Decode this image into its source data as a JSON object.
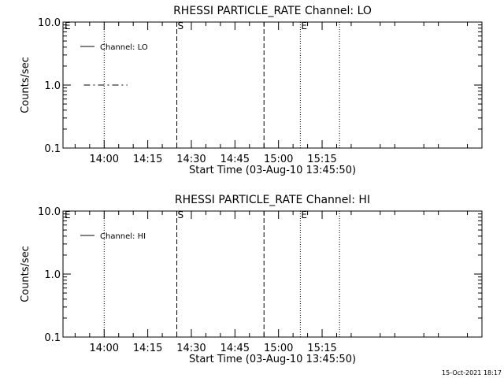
{
  "footer": {
    "timestamp": "15-Oct-2021 18:17"
  },
  "chart_data": [
    {
      "type": "line",
      "title": "RHESSI PARTICLE_RATE Channel: LO",
      "xlabel": "Start Time (03-Aug-10 13:45:50)",
      "ylabel": "Counts/sec",
      "y_scale": "log",
      "ylim": [
        0.1,
        10.0
      ],
      "y_ticks": [
        {
          "value": 0.1,
          "label": "0.1"
        },
        {
          "value": 1.0,
          "label": "1.0"
        },
        {
          "value": 10.0,
          "label": "10.0"
        }
      ],
      "x_ticks": [
        {
          "value": "14:00",
          "label": "14:00"
        },
        {
          "value": "14:15",
          "label": "14:15"
        },
        {
          "value": "14:30",
          "label": "14:30"
        },
        {
          "value": "14:45",
          "label": "14:45"
        },
        {
          "value": "15:00",
          "label": "15:00"
        },
        {
          "value": "15:15",
          "label": "15:15"
        }
      ],
      "xlim": [
        "13:45:50",
        "16:10:00"
      ],
      "grid": false,
      "legend_position": "top-left",
      "series": [
        {
          "name": "Channel: LO",
          "x": [
            "13:53:00",
            "14:08:00"
          ],
          "values": [
            1.0,
            1.0
          ],
          "line_style": "dash-dot"
        }
      ],
      "markers": [
        {
          "time": "14:00:00",
          "label": "",
          "style": "dotted"
        },
        {
          "time": "14:25:00",
          "label": "S",
          "style": "dashed"
        },
        {
          "time": "14:55:00",
          "label": "",
          "style": "dashed"
        },
        {
          "time": "15:07:30",
          "label": "E",
          "style": "dotted"
        },
        {
          "time": "15:21:00",
          "label": "",
          "style": "dotted"
        }
      ],
      "corner_labels": [
        {
          "label": "E",
          "position": "top-left"
        }
      ]
    },
    {
      "type": "line",
      "title": "RHESSI PARTICLE_RATE Channel: HI",
      "xlabel": "Start Time (03-Aug-10 13:45:50)",
      "ylabel": "Counts/sec",
      "y_scale": "log",
      "ylim": [
        0.1,
        10.0
      ],
      "y_ticks": [
        {
          "value": 0.1,
          "label": "0.1"
        },
        {
          "value": 1.0,
          "label": "1.0"
        },
        {
          "value": 10.0,
          "label": "10.0"
        }
      ],
      "x_ticks": [
        {
          "value": "14:00",
          "label": "14:00"
        },
        {
          "value": "14:15",
          "label": "14:15"
        },
        {
          "value": "14:30",
          "label": "14:30"
        },
        {
          "value": "14:45",
          "label": "14:45"
        },
        {
          "value": "15:00",
          "label": "15:00"
        },
        {
          "value": "15:15",
          "label": "15:15"
        }
      ],
      "xlim": [
        "13:45:50",
        "16:10:00"
      ],
      "grid": false,
      "legend_position": "top-left",
      "series": [
        {
          "name": "Channel: HI",
          "x": [],
          "values": [],
          "line_style": "solid"
        }
      ],
      "markers": [
        {
          "time": "14:00:00",
          "label": "",
          "style": "dotted"
        },
        {
          "time": "14:25:00",
          "label": "S",
          "style": "dashed"
        },
        {
          "time": "14:55:00",
          "label": "",
          "style": "dashed"
        },
        {
          "time": "15:07:30",
          "label": "E",
          "style": "dotted"
        },
        {
          "time": "15:21:00",
          "label": "",
          "style": "dotted"
        }
      ],
      "corner_labels": [
        {
          "label": "E",
          "position": "top-left"
        }
      ]
    }
  ]
}
